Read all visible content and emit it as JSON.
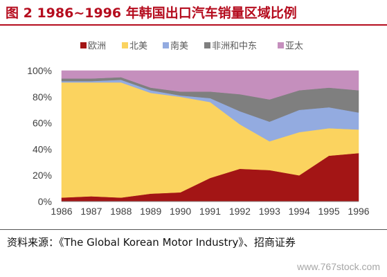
{
  "header": {
    "title": "图 2 1986~1996 年韩国出口汽车销量区域比例"
  },
  "footer": {
    "source": "资料来源：《The Global Korean Motor Industry》、招商证券",
    "watermark": "www.767stock.com"
  },
  "chart_data": {
    "type": "area",
    "stacked": true,
    "normalized": true,
    "categories": [
      "1986",
      "1987",
      "1988",
      "1989",
      "1990",
      "1991",
      "1992",
      "1993",
      "1994",
      "1995",
      "1996"
    ],
    "series": [
      {
        "name": "欧洲",
        "color": "#a31515",
        "values": [
          3,
          4,
          3,
          6,
          7,
          18,
          25,
          24,
          20,
          35,
          37
        ]
      },
      {
        "name": "北美",
        "color": "#fbd35f",
        "values": [
          88,
          87,
          88,
          77,
          73,
          58,
          34,
          22,
          33,
          21,
          18
        ]
      },
      {
        "name": "南美",
        "color": "#93abe0",
        "values": [
          1,
          1,
          2,
          2,
          1,
          3,
          10,
          15,
          17,
          16,
          13
        ]
      },
      {
        "name": "非洲和中东",
        "color": "#7f7f7f",
        "values": [
          2,
          2,
          2,
          2,
          3,
          5,
          13,
          17,
          15,
          15,
          17
        ]
      },
      {
        "name": "亚太",
        "color": "#c58fbd",
        "values": [
          6,
          6,
          5,
          13,
          16,
          16,
          18,
          22,
          15,
          13,
          15
        ]
      }
    ],
    "ylim": [
      0,
      100
    ],
    "yticks": [
      "0%",
      "20%",
      "40%",
      "60%",
      "80%",
      "100%"
    ],
    "legend_position": "top",
    "grid": false
  }
}
